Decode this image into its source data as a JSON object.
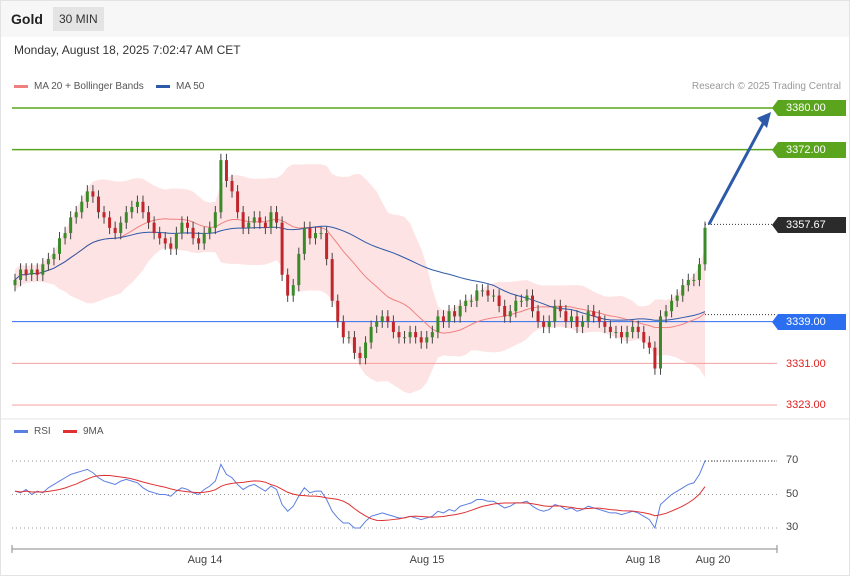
{
  "header": {
    "title": "Gold",
    "timeframe": "30 MIN",
    "datetime": "Monday, August 18, 2025 7:02:47 AM CET",
    "credit": "Research © 2025 Trading Central"
  },
  "legend": {
    "ma20_label": "MA 20 + Bollinger Bands",
    "ma20_color": "#f08080",
    "ma50_label": "MA 50",
    "ma50_color": "#2d5aa8",
    "rsi_label": "RSI",
    "rsi_color": "#5b7fe0",
    "ma9_label": "9MA",
    "ma9_color": "#e03030"
  },
  "levels": [
    {
      "label": "3380.00",
      "value": 3380.0,
      "style": "green"
    },
    {
      "label": "3372.00",
      "value": 3372.0,
      "style": "green"
    },
    {
      "label": "3357.67",
      "value": 3357.67,
      "style": "dark"
    },
    {
      "label": "3339.00",
      "value": 3339.0,
      "style": "blue"
    },
    {
      "label": "3331.00",
      "value": 3331.0,
      "style": "red"
    },
    {
      "label": "3323.00",
      "value": 3323.0,
      "style": "red"
    }
  ],
  "rsi_levels": [
    "70",
    "50",
    "30"
  ],
  "dates": [
    "Aug 14",
    "Aug 15",
    "Aug 18",
    "Aug 20"
  ],
  "chart_data": {
    "type": "line",
    "title": "Gold",
    "ylim": [
      3323,
      3380
    ],
    "current_price": 3357.67,
    "projection": {
      "from": 3357.67,
      "to": 3380.0
    },
    "close": [
      3347,
      3349,
      3348,
      3349,
      3348,
      3350,
      3351,
      3352,
      3355,
      3356,
      3359,
      3360,
      3362,
      3364,
      3363,
      3360,
      3359,
      3357,
      3356,
      3358,
      3360,
      3361,
      3362,
      3360,
      3358,
      3356,
      3355,
      3354,
      3353,
      3356,
      3358,
      3357,
      3355,
      3354,
      3356,
      3357,
      3360,
      3370,
      3366,
      3364,
      3360,
      3357,
      3358,
      3359,
      3358,
      3357,
      3360,
      3358,
      3348,
      3344,
      3346,
      3352,
      3357,
      3355,
      3356,
      3356,
      3351,
      3343,
      3339,
      3336,
      3336,
      3333,
      3332,
      3335,
      3338,
      3339,
      3340,
      3339,
      3337,
      3336,
      3336,
      3337,
      3336,
      3335,
      3336,
      3337,
      3340,
      3339,
      3341,
      3340,
      3342,
      3343,
      3343,
      3345,
      3345,
      3344,
      3344,
      3342,
      3340,
      3341,
      3343,
      3343,
      3344,
      3341,
      3339,
      3338,
      3339,
      3342,
      3341,
      3339,
      3340,
      3338,
      3339,
      3341,
      3340,
      3339,
      3338,
      3337,
      3337,
      3336,
      3337,
      3338,
      3337,
      3335,
      3334,
      3330,
      3340,
      3341,
      3343,
      3344,
      3346,
      3347,
      3347,
      3350,
      3357
    ],
    "open": [
      3346,
      3347,
      3349,
      3348,
      3349,
      3348,
      3350,
      3351,
      3352,
      3355,
      3356,
      3359,
      3360,
      3362,
      3364,
      3363,
      3360,
      3359,
      3357,
      3356,
      3358,
      3360,
      3361,
      3362,
      3360,
      3358,
      3356,
      3355,
      3354,
      3353,
      3356,
      3358,
      3357,
      3355,
      3354,
      3356,
      3357,
      3360,
      3370,
      3366,
      3364,
      3360,
      3357,
      3358,
      3359,
      3358,
      3357,
      3360,
      3358,
      3348,
      3344,
      3346,
      3352,
      3357,
      3355,
      3356,
      3356,
      3351,
      3343,
      3339,
      3336,
      3336,
      3333,
      3332,
      3335,
      3338,
      3339,
      3340,
      3339,
      3337,
      3336,
      3336,
      3337,
      3336,
      3335,
      3336,
      3337,
      3340,
      3339,
      3341,
      3340,
      3342,
      3343,
      3343,
      3345,
      3345,
      3344,
      3344,
      3342,
      3340,
      3341,
      3343,
      3343,
      3344,
      3341,
      3339,
      3338,
      3339,
      3342,
      3341,
      3339,
      3340,
      3338,
      3339,
      3341,
      3340,
      3339,
      3338,
      3337,
      3337,
      3336,
      3337,
      3338,
      3337,
      3335,
      3334,
      3330,
      3340,
      3341,
      3343,
      3344,
      3346,
      3347,
      3347,
      3350
    ],
    "rsi": [
      52,
      51,
      53,
      50,
      52,
      51,
      54,
      56,
      58,
      60,
      62,
      63,
      64,
      65,
      63,
      60,
      58,
      57,
      56,
      58,
      59,
      58,
      57,
      54,
      52,
      51,
      50,
      50,
      49,
      52,
      54,
      53,
      51,
      50,
      53,
      55,
      58,
      68,
      62,
      60,
      56,
      53,
      55,
      56,
      54,
      52,
      55,
      53,
      44,
      40,
      43,
      49,
      54,
      51,
      52,
      52,
      47,
      40,
      36,
      33,
      33,
      30,
      30,
      34,
      37,
      38,
      39,
      38,
      37,
      36,
      36,
      37,
      36,
      35,
      36,
      37,
      40,
      39,
      41,
      40,
      43,
      44,
      45,
      47,
      47,
      46,
      46,
      44,
      42,
      43,
      45,
      45,
      46,
      43,
      41,
      40,
      41,
      44,
      43,
      41,
      42,
      40,
      41,
      43,
      42,
      41,
      40,
      39,
      39,
      38,
      39,
      40,
      39,
      37,
      35,
      30,
      44,
      47,
      50,
      52,
      54,
      56,
      57,
      62,
      70
    ],
    "rsi_ylim": [
      20,
      75
    ]
  }
}
